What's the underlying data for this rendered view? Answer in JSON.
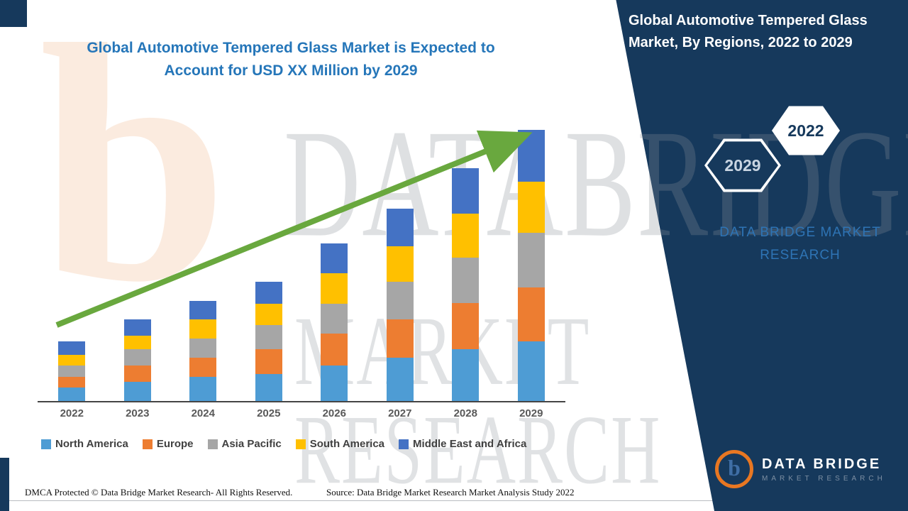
{
  "header": {
    "title_line1": "Global Automotive Tempered Glass Market is Expected to",
    "title_line2": "Account for USD XX Million by 2029",
    "title_color": "#2576b9"
  },
  "panel": {
    "bg_color": "#16395c",
    "title": "Global Automotive Tempered Glass Market, By Regions, 2022 to 2029",
    "hexagons": [
      {
        "label": "2029",
        "style": "outlined-on-navy"
      },
      {
        "label": "2022",
        "style": "filled-white"
      }
    ],
    "brand_line1": "DATA BRIDGE MARKET",
    "brand_line2": "RESEARCH",
    "logo": {
      "monogram": "b",
      "name": "DATA BRIDGE",
      "tagline": "MARKET RESEARCH"
    }
  },
  "watermark": {
    "monogram": "b",
    "line1": "DATABRIDGE",
    "line2": "MARKET RESEARCH"
  },
  "footer": {
    "dmca": "DMCA Protected © Data Bridge Market Research- All Rights Reserved.",
    "source": "Source: Data Bridge Market Research Market Analysis Study 2022"
  },
  "chart_data": {
    "type": "bar",
    "stacked": true,
    "title": "Global Automotive Tempered Glass Market is Expected to Account for USD XX Million by 2029",
    "categories": [
      "2022",
      "2023",
      "2024",
      "2025",
      "2026",
      "2027",
      "2028",
      "2029"
    ],
    "series": [
      {
        "name": "North America",
        "color": "#4e9cd4",
        "values": [
          5,
          7,
          9,
          10,
          13,
          16,
          19,
          22
        ]
      },
      {
        "name": "Europe",
        "color": "#ed7d31",
        "values": [
          4,
          6,
          7,
          9,
          12,
          14,
          17,
          20
        ]
      },
      {
        "name": "Asia Pacific",
        "color": "#a6a6a6",
        "values": [
          4,
          6,
          7,
          9,
          11,
          14,
          17,
          20
        ]
      },
      {
        "name": "South America",
        "color": "#ffc000",
        "values": [
          4,
          5,
          7,
          8,
          11,
          13,
          16,
          19
        ]
      },
      {
        "name": "Middle East and Africa",
        "color": "#4472c4",
        "values": [
          5,
          6,
          7,
          8,
          11,
          14,
          17,
          19
        ]
      }
    ],
    "totals": [
      22,
      30,
      37,
      44,
      58,
      71,
      86,
      100
    ],
    "value_note": "Actual USD values shown as XX in source image; series values are relative bar-height estimates indexed to 2029 total = 100",
    "y_axis_visible": false,
    "grid": false,
    "trend_arrow": true,
    "legend_position": "bottom"
  }
}
